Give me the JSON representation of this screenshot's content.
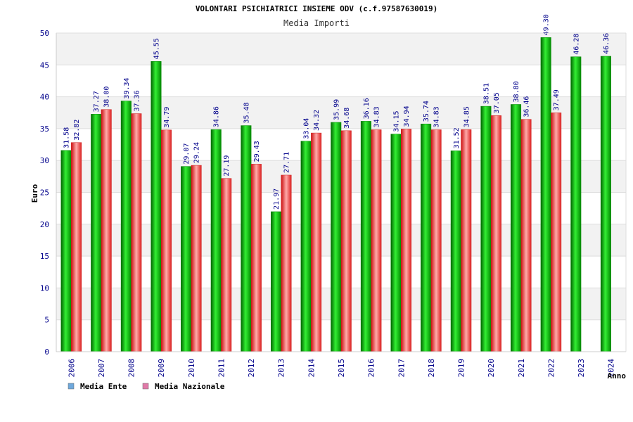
{
  "chart_data": {
    "type": "bar",
    "title": "VOLONTARI PSICHIATRICI INSIEME ODV (c.f.97587630019)",
    "subtitle": "Media Importi",
    "xlabel": "Anno",
    "ylabel": "Euro",
    "ylim": [
      0,
      50
    ],
    "yticks": [
      0,
      5,
      10,
      15,
      20,
      25,
      30,
      35,
      40,
      45,
      50
    ],
    "grid": true,
    "legend_position": "bottom-left",
    "categories": [
      "2006",
      "2007",
      "2008",
      "2009",
      "2010",
      "2011",
      "2012",
      "2013",
      "2014",
      "2015",
      "2016",
      "2017",
      "2018",
      "2019",
      "2020",
      "2021",
      "2022",
      "2023",
      "2024"
    ],
    "series": [
      {
        "name": "Media Ente",
        "color": "#00aa00",
        "legend_color": "#6fa8dc",
        "values": [
          31.58,
          37.27,
          39.34,
          45.55,
          29.07,
          34.86,
          35.48,
          21.97,
          33.04,
          35.99,
          36.16,
          34.15,
          35.74,
          31.52,
          38.51,
          38.8,
          49.3,
          46.28,
          46.36
        ],
        "labels": [
          "31.58",
          "37.27",
          "39.34",
          "45.55",
          "29.07",
          "34.86",
          "35.48",
          "21.97",
          "33.04",
          "35.99",
          "36.16",
          "34.15",
          "35.74",
          "31.52",
          "38.51",
          "38.80",
          "49.30",
          "46.28",
          "46.36"
        ]
      },
      {
        "name": "Media Nazionale",
        "color": "#ee2222",
        "legend_color": "#e07aa8",
        "values": [
          32.82,
          38.0,
          37.36,
          34.79,
          29.24,
          27.19,
          29.43,
          27.71,
          34.32,
          34.68,
          34.83,
          34.94,
          34.83,
          34.85,
          37.05,
          36.46,
          37.49,
          null,
          null
        ],
        "labels": [
          "32.82",
          "38.00",
          "37.36",
          "34.79",
          "29.24",
          "27.19",
          "29.43",
          "27.71",
          "34.32",
          "34.68",
          "34.83",
          "34.94",
          "34.83",
          "34.85",
          "37.05",
          "36.46",
          "37.49",
          null,
          null
        ]
      }
    ]
  }
}
